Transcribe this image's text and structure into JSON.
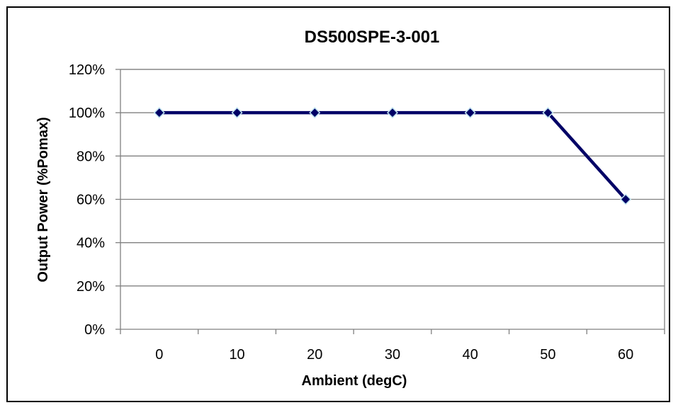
{
  "chart_data": {
    "type": "line",
    "title": "DS500SPE-3-001",
    "xlabel": "Ambient (degC)",
    "ylabel": "Output Power (%Pomax)",
    "categories": [
      "0",
      "10",
      "20",
      "30",
      "40",
      "50",
      "60"
    ],
    "series": [
      {
        "values": [
          100,
          100,
          100,
          100,
          100,
          100,
          60
        ]
      }
    ],
    "ylim": [
      0,
      120
    ],
    "y_ticks": [
      "0%",
      "20%",
      "40%",
      "60%",
      "80%",
      "100%",
      "120%"
    ],
    "grid": "horizontal",
    "legend": "none",
    "colors": {
      "line": "#000066",
      "marker_fill": "#000066",
      "marker_stroke": "#bfe3f0",
      "grid": "#808080",
      "axis": "#808080"
    }
  }
}
